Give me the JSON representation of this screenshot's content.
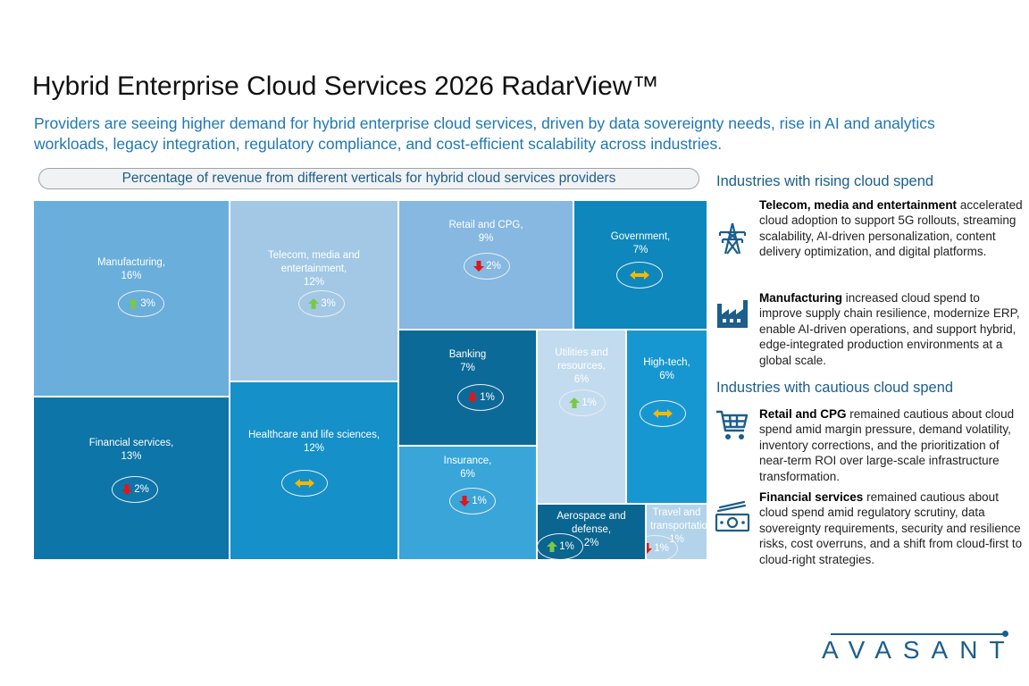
{
  "title": "Hybrid Enterprise Cloud Services 2026 RadarView™",
  "subtitle": "Providers are seeing higher demand for hybrid enterprise cloud services, driven by data sovereignty needs, rise in AI and analytics workloads, legacy integration, regulatory compliance, and cost-efficient scalability across industries.",
  "chart_data": {
    "type": "treemap",
    "title": "Percentage of revenue from different verticals for hybrid cloud services providers",
    "items": [
      {
        "label": "Manufacturing,",
        "value": "16%",
        "trend": "up",
        "change": "3%",
        "color": "#6aaedb"
      },
      {
        "label": "Financial services,",
        "value": "13%",
        "trend": "down",
        "change": "2%",
        "color": "#0d75a8"
      },
      {
        "label": "Telecom, media and entertainment,",
        "value": "12%",
        "trend": "up",
        "change": "3%",
        "color": "#a2c8e6"
      },
      {
        "label": "Healthcare and life sciences,",
        "value": "12%",
        "trend": "flat",
        "change": "",
        "color": "#1590c9"
      },
      {
        "label": "Retail and CPG,",
        "value": "9%",
        "trend": "down",
        "change": "2%",
        "color": "#86b8e1"
      },
      {
        "label": "Government,",
        "value": "7%",
        "trend": "flat",
        "change": "",
        "color": "#0e88bc"
      },
      {
        "label": "Banking",
        "value": "7%",
        "trend": "down",
        "change": "1%",
        "color": "#0c6a99"
      },
      {
        "label": "Utilities and resources,",
        "value": "6%",
        "trend": "up",
        "change": "1%",
        "color": "#c2dbee"
      },
      {
        "label": "High-tech,",
        "value": "6%",
        "trend": "flat",
        "change": "",
        "color": "#1797d1"
      },
      {
        "label": "Insurance,",
        "value": "6%",
        "trend": "down",
        "change": "1%",
        "color": "#3aa5d8"
      },
      {
        "label": "Aerospace and defense,",
        "value": "2%",
        "trend": "up",
        "change": "1%",
        "color": "#0a6590"
      },
      {
        "label": "Travel and transportation,",
        "value": "1%",
        "trend": "down",
        "change": "1%",
        "color": "#b3d3ea"
      }
    ]
  },
  "rising": {
    "heading": "Industries with rising cloud spend",
    "items": [
      {
        "name": "Telecom, media and entertainment",
        "text": "accelerated cloud adoption to support 5G rollouts, streaming scalability, AI-driven personalization, content delivery optimization, and digital platforms.",
        "icon": "transmission-tower-icon"
      },
      {
        "name": "Manufacturing",
        "text": "increased cloud spend to improve supply chain resilience, modernize ERP, enable AI-driven operations, and support hybrid, edge-integrated production environments at a global scale.",
        "icon": "factory-icon"
      }
    ]
  },
  "cautious": {
    "heading": "Industries with cautious cloud spend",
    "items": [
      {
        "name": "Retail and CPG",
        "text": "remained cautious about cloud spend amid margin pressure, demand volatility, inventory corrections, and the prioritization of near-term ROI over large-scale infrastructure transformation.",
        "icon": "shopping-cart-icon"
      },
      {
        "name": "Financial services",
        "text": "remained cautious about cloud spend amid regulatory scrutiny, data sovereignty requirements, security and resilience risks, cost overruns, and a shift from cloud-first to cloud-right strategies.",
        "icon": "banknote-icon"
      }
    ]
  },
  "logo": "AVASANT",
  "colors": {
    "accent": "#1c5e8c",
    "subtitle": "#1f77b4",
    "up": "#7ac943",
    "down": "#e0161b",
    "flat": "#f5b800"
  }
}
